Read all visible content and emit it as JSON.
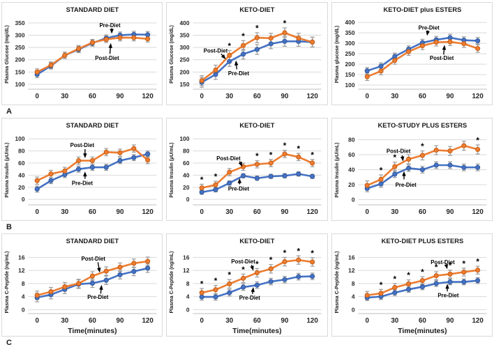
{
  "colors": {
    "pre_diet_line": "#4472C4",
    "pre_diet_stroke": "#2F5597",
    "post_diet_line": "#ED7D31",
    "post_diet_stroke": "#C55A11",
    "error_bar": "#9A9A9A",
    "gridline": "#D9D9D9",
    "axis_line": "#BFBFBF",
    "text": "#1A1A1A",
    "tick_text": "#262626"
  },
  "rows": [
    {
      "label": "A"
    },
    {
      "label": "B"
    },
    {
      "label": "C"
    }
  ],
  "significance_marker": "*",
  "chart_data": [
    {
      "type": "line",
      "title": "STANDARD DIET",
      "ylabel": "Plasma Glucose (mg/dL)",
      "xlabel": "",
      "x": [
        0,
        15,
        30,
        45,
        60,
        75,
        90,
        105,
        120
      ],
      "xticks": [
        0,
        30,
        60,
        90,
        120
      ],
      "yticks": [
        100,
        150,
        200,
        250,
        300,
        350
      ],
      "ylim": [
        80,
        364
      ],
      "series": [
        {
          "name": "Pre-Diet",
          "color": "#4472C4",
          "point_stroke": "#2F5597",
          "err": 13,
          "values": [
            140,
            175,
            218,
            242,
            268,
            288,
            300,
            303,
            302
          ]
        },
        {
          "name": "Post-Diet",
          "color": "#ED7D31",
          "point_stroke": "#C55A11",
          "err": 13,
          "values": [
            150,
            178,
            218,
            245,
            270,
            283,
            290,
            290,
            285
          ]
        }
      ],
      "significance_x": [],
      "annotations": [
        {
          "text": "Pre-Diet",
          "label": [
            79,
            341
          ],
          "arrow": [
            81,
            328,
            81,
            306
          ]
        },
        {
          "text": "Post-Diet",
          "label": [
            76,
            208
          ],
          "arrow": [
            79,
            224,
            80,
            268
          ]
        }
      ]
    },
    {
      "type": "line",
      "title": "KETO-DIET",
      "ylabel": "Plasma Glucose (mg/dL)",
      "xlabel": "",
      "x": [
        0,
        15,
        30,
        45,
        60,
        75,
        90,
        105,
        120
      ],
      "xticks": [
        0,
        30,
        60,
        90,
        120
      ],
      "yticks": [
        150,
        200,
        250,
        300,
        350,
        400
      ],
      "ylim": [
        130,
        414
      ],
      "series": [
        {
          "name": "Pre-Diet",
          "color": "#4472C4",
          "point_stroke": "#2F5597",
          "err": 20,
          "values": [
            158,
            190,
            243,
            273,
            292,
            315,
            325,
            325,
            322
          ]
        },
        {
          "name": "Post-Diet",
          "color": "#ED7D31",
          "point_stroke": "#C55A11",
          "err": 20,
          "values": [
            165,
            208,
            268,
            308,
            340,
            338,
            360,
            338,
            322
          ]
        }
      ],
      "significance_x": [
        30,
        45,
        60,
        90
      ],
      "annotations": [
        {
          "text": "Post-Diet",
          "label": [
            15,
            288
          ],
          "arrow": [
            21,
            274,
            26,
            252
          ]
        },
        {
          "text": "Pre-Diet",
          "label": [
            40,
            196
          ],
          "arrow": [
            38,
            211,
            37,
            247
          ]
        }
      ]
    },
    {
      "type": "line",
      "title": "KETO-DIET plus ESTERS",
      "ylabel": "Plasma glucose (mg/dL)",
      "xlabel": "",
      "x": [
        0,
        15,
        30,
        45,
        60,
        75,
        90,
        105,
        120
      ],
      "xticks": [
        0,
        30,
        60,
        90,
        120
      ],
      "yticks": [
        100,
        150,
        200,
        250,
        300,
        350,
        400
      ],
      "ylim": [
        80,
        414
      ],
      "series": [
        {
          "name": "Pre-Diet",
          "color": "#4472C4",
          "point_stroke": "#2F5597",
          "err": 16,
          "values": [
            168,
            190,
            237,
            272,
            303,
            317,
            327,
            315,
            312
          ]
        },
        {
          "name": "Post-Diet",
          "color": "#ED7D31",
          "point_stroke": "#C55A11",
          "err": 18,
          "values": [
            140,
            167,
            218,
            260,
            288,
            305,
            307,
            298,
            275
          ]
        }
      ],
      "significance_x": [],
      "annotations": [
        {
          "text": "Pre-Diet",
          "label": [
            67,
            376
          ],
          "arrow": [
            66,
            362,
            65,
            336
          ]
        },
        {
          "text": "Post-Diet",
          "label": [
            81,
            230
          ],
          "arrow": [
            83,
            246,
            84,
            292
          ]
        }
      ]
    },
    {
      "type": "line",
      "title": "STANDARD DIET",
      "ylabel": "Plasma Insulin (µU/mL)",
      "xlabel": "",
      "x": [
        0,
        15,
        30,
        45,
        60,
        75,
        90,
        105,
        120
      ],
      "xticks": [
        0,
        30,
        60,
        90,
        120
      ],
      "yticks": [
        0,
        20,
        40,
        60,
        80,
        100
      ],
      "ylim": [
        -9,
        106
      ],
      "series": [
        {
          "name": "Pre-Diet",
          "color": "#4472C4",
          "point_stroke": "#2F5597",
          "err": 5,
          "values": [
            17,
            31,
            41,
            50,
            53,
            53,
            64,
            69,
            75
          ]
        },
        {
          "name": "Post-Diet",
          "color": "#ED7D31",
          "point_stroke": "#C55A11",
          "err": 6,
          "values": [
            31,
            42,
            47,
            64,
            64,
            78,
            77,
            84,
            65
          ]
        }
      ],
      "significance_x": [],
      "annotations": [
        {
          "text": "Post-Diet",
          "label": [
            49,
            90
          ],
          "arrow": [
            52,
            83,
            52,
            68
          ]
        },
        {
          "text": "Pre-Diet",
          "label": [
            49,
            27
          ],
          "arrow": [
            52,
            34,
            52,
            46
          ]
        }
      ]
    },
    {
      "type": "line",
      "title": "KETO-DIET",
      "ylabel": "Plasma Insulin (µU/mL)",
      "xlabel": "",
      "x": [
        0,
        15,
        30,
        45,
        60,
        75,
        90,
        105,
        120
      ],
      "xticks": [
        0,
        30,
        60,
        90,
        120
      ],
      "yticks": [
        0,
        20,
        40,
        60,
        80,
        100
      ],
      "ylim": [
        -9,
        106
      ],
      "series": [
        {
          "name": "Pre-Diet",
          "color": "#4472C4",
          "point_stroke": "#2F5597",
          "err": 3.5,
          "values": [
            12,
            16,
            27,
            39,
            35,
            38,
            39,
            42,
            38
          ]
        },
        {
          "name": "Post-Diet",
          "color": "#ED7D31",
          "point_stroke": "#C55A11",
          "err": 6,
          "values": [
            19,
            24,
            45,
            54,
            58,
            60,
            75,
            70,
            60
          ]
        }
      ],
      "significance_x": [
        0,
        15,
        60,
        75,
        90,
        105,
        120
      ],
      "annotations": [
        {
          "text": "Post-Diet",
          "label": [
            29,
            68
          ],
          "arrow": [
            41,
            63,
            44,
            54
          ]
        },
        {
          "text": "Pre-Diet",
          "label": [
            40,
            18
          ],
          "arrow": [
            41,
            25,
            41,
            35
          ]
        }
      ]
    },
    {
      "type": "line",
      "title": "KETO-STUDY PLUS ESTERS",
      "ylabel": "Plasma Insulin (µU/mL)",
      "xlabel": "",
      "x": [
        0,
        15,
        30,
        45,
        60,
        75,
        90,
        105,
        120
      ],
      "xticks": [
        0,
        30,
        60,
        90,
        120
      ],
      "yticks": [
        0,
        20,
        40,
        60,
        80
      ],
      "ylim": [
        -7,
        86
      ],
      "series": [
        {
          "name": "Pre-Diet",
          "color": "#4472C4",
          "point_stroke": "#2F5597",
          "err": 4.5,
          "values": [
            15,
            21,
            34,
            42,
            40,
            46,
            46,
            43,
            43
          ]
        },
        {
          "name": "Post-Diet",
          "color": "#ED7D31",
          "point_stroke": "#C55A11",
          "err": 6,
          "values": [
            19,
            27,
            44,
            54,
            59,
            66,
            65,
            72,
            67
          ]
        }
      ],
      "significance_x": [
        15,
        30,
        60,
        120
      ],
      "annotations": [
        {
          "text": "Post-Diet",
          "label": [
            34,
            65
          ],
          "arrow": [
            38,
            59,
            39,
            51
          ]
        },
        {
          "text": "Pre-Diet",
          "label": [
            42,
            20
          ],
          "arrow": [
            40,
            27,
            40,
            38
          ]
        }
      ]
    },
    {
      "type": "line",
      "title": "STANDARD DIET",
      "ylabel": "Plasma C-Peptide (ng/mL)",
      "xlabel": "Time(minutes)",
      "x": [
        0,
        15,
        30,
        45,
        60,
        75,
        90,
        105,
        120
      ],
      "xticks": [
        0,
        30,
        60,
        90,
        120
      ],
      "yticks": [
        0,
        4,
        8,
        12,
        16
      ],
      "ylim": [
        -1.2,
        18.0
      ],
      "series": [
        {
          "name": "Pre-Diet",
          "color": "#4472C4",
          "point_stroke": "#2F5597",
          "err": 1.3,
          "values": [
            3.7,
            4.6,
            6.2,
            7.8,
            8.1,
            9.0,
            10.7,
            11.7,
            12.7
          ]
        },
        {
          "name": "Post-Diet",
          "color": "#ED7D31",
          "point_stroke": "#C55A11",
          "err": 1.3,
          "values": [
            4.4,
            5.5,
            7.0,
            8.0,
            10.3,
            11.8,
            13.0,
            14.2,
            14.8
          ]
        }
      ],
      "significance_x": [],
      "annotations": [
        {
          "text": "Post-Diet",
          "label": [
            61,
            15.6
          ],
          "arrow": [
            66,
            14.5,
            68,
            11.3
          ]
        },
        {
          "text": "Pre-Diet",
          "label": [
            66,
            3.9
          ],
          "arrow": [
            69,
            4.9,
            70,
            7.6
          ]
        }
      ]
    },
    {
      "type": "line",
      "title": "KETO-DIET",
      "ylabel": "Plasma C-Peptide (ng/mL)",
      "xlabel": "Time(minutes)",
      "x": [
        0,
        15,
        30,
        45,
        60,
        75,
        90,
        105,
        120
      ],
      "xticks": [
        0,
        30,
        60,
        90,
        120
      ],
      "yticks": [
        0,
        4,
        8,
        12,
        16
      ],
      "ylim": [
        -1.2,
        18.0
      ],
      "series": [
        {
          "name": "Pre-Diet",
          "color": "#4472C4",
          "point_stroke": "#2F5597",
          "err": 1.0,
          "values": [
            3.9,
            3.9,
            5.2,
            6.9,
            7.5,
            8.6,
            9.2,
            10.1,
            10.2
          ]
        },
        {
          "name": "Post-Diet",
          "color": "#ED7D31",
          "point_stroke": "#C55A11",
          "err": 1.3,
          "values": [
            5.2,
            6.1,
            7.9,
            9.6,
            11.3,
            12.5,
            14.7,
            15.2,
            14.6
          ]
        }
      ],
      "significance_x": [
        0,
        15,
        30,
        45,
        60,
        75,
        90,
        105,
        120
      ],
      "annotations": [
        {
          "text": "Post-Diet",
          "label": [
            45,
            14.8
          ],
          "arrow": [
            54,
            13.7,
            56,
            11.9
          ]
        },
        {
          "text": "Pre-Diet",
          "label": [
            52,
            3.7
          ],
          "arrow": [
            55,
            4.8,
            56,
            6.9
          ]
        }
      ]
    },
    {
      "type": "line",
      "title": "KETO-DIET PLUS ESTERS",
      "ylabel": "Plasma C-Peptide (ng/mL)",
      "xlabel": "Time(minutes)",
      "x": [
        0,
        15,
        30,
        45,
        60,
        75,
        90,
        105,
        120
      ],
      "xticks": [
        0,
        30,
        60,
        90,
        120
      ],
      "yticks": [
        0,
        4,
        8,
        12,
        16
      ],
      "ylim": [
        -1.2,
        18.0
      ],
      "series": [
        {
          "name": "Pre-Diet",
          "color": "#4472C4",
          "point_stroke": "#2F5597",
          "err": 0.9,
          "values": [
            3.7,
            4.0,
            5.2,
            6.2,
            7.0,
            8.0,
            8.5,
            8.5,
            8.9
          ]
        },
        {
          "name": "Post-Diet",
          "color": "#ED7D31",
          "point_stroke": "#C55A11",
          "err": 1.2,
          "values": [
            4.4,
            5.0,
            6.8,
            7.9,
            8.9,
            10.4,
            10.9,
            11.5,
            12.1
          ]
        }
      ],
      "significance_x": [
        15,
        30,
        45,
        60,
        75,
        90,
        105,
        120
      ],
      "annotations": [
        {
          "text": "Post-Diet",
          "label": [
            82,
            14.6
          ],
          "arrow": [
            86,
            13.5,
            87,
            12.4
          ]
        },
        {
          "text": "Pre-Diet",
          "label": [
            88,
            4.5
          ],
          "arrow": [
            87,
            5.6,
            87,
            7.9
          ]
        }
      ]
    }
  ]
}
